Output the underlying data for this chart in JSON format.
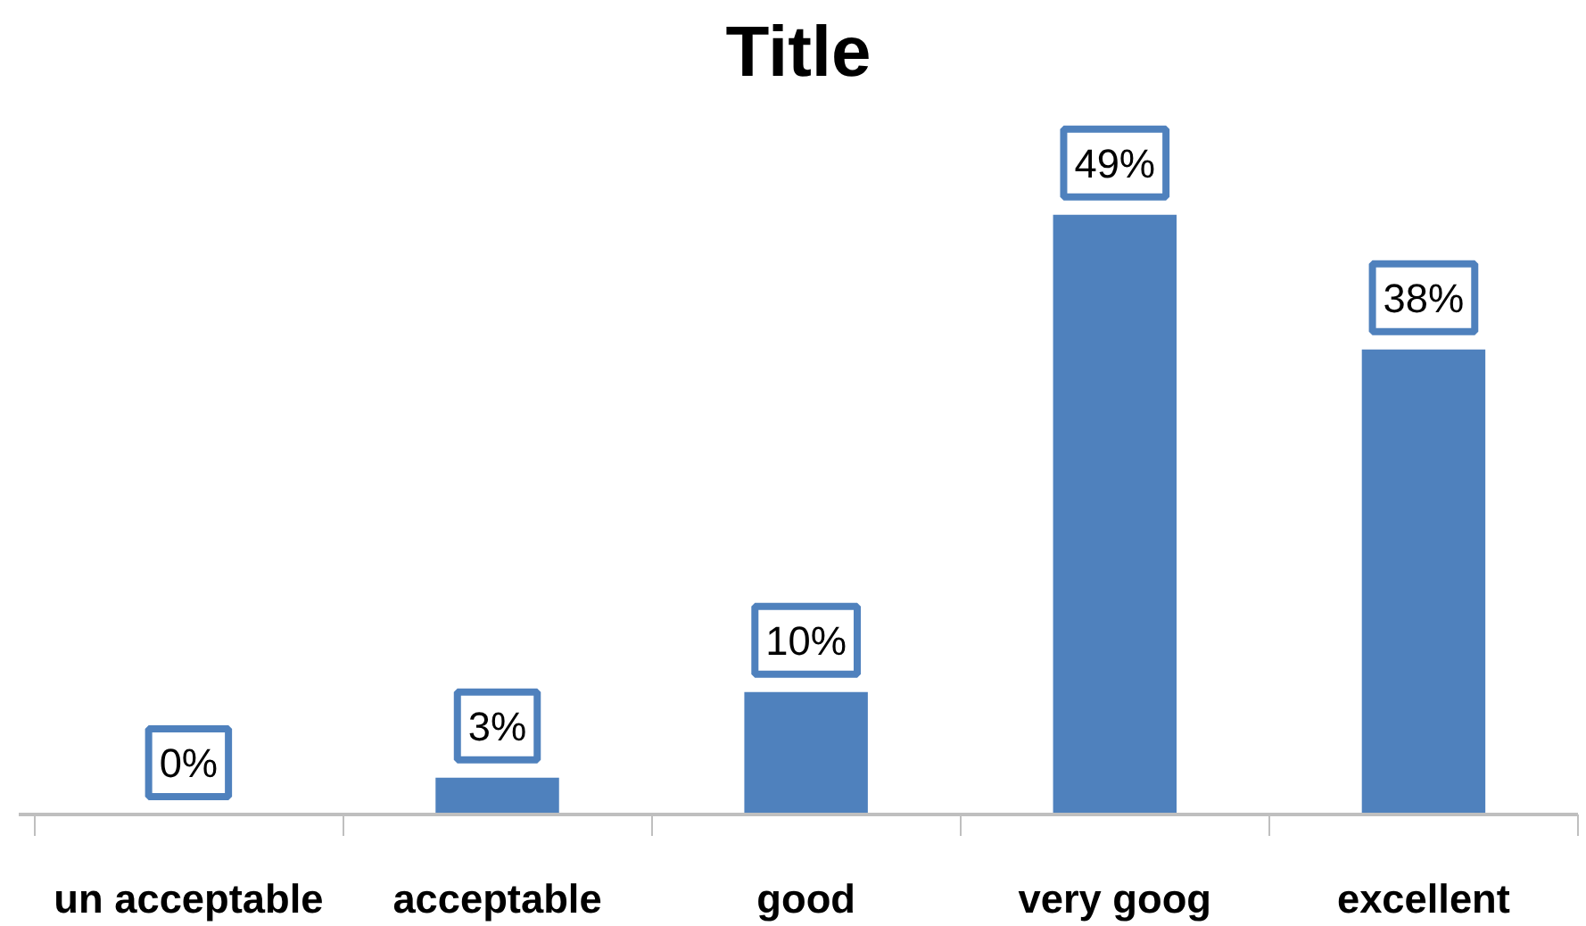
{
  "chart_data": {
    "type": "bar",
    "title": "Title",
    "categories": [
      "un acceptable",
      "acceptable",
      "good",
      "very goog",
      "excellent"
    ],
    "values": [
      0,
      3,
      10,
      49,
      38
    ],
    "value_labels": [
      "0%",
      "3%",
      "10%",
      "49%",
      "38%"
    ],
    "color": "#4f81bd"
  }
}
